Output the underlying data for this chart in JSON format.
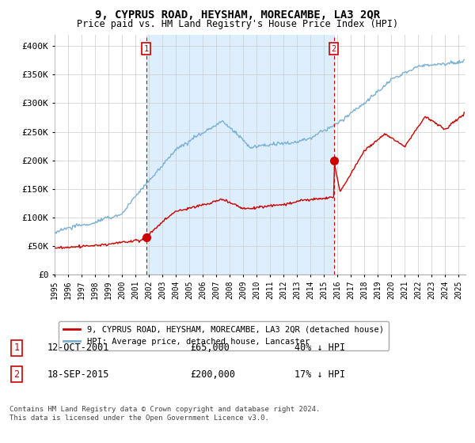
{
  "title": "9, CYPRUS ROAD, HEYSHAM, MORECAMBE, LA3 2QR",
  "subtitle": "Price paid vs. HM Land Registry's House Price Index (HPI)",
  "title_fontsize": 10,
  "subtitle_fontsize": 8.5,
  "xlim_start": 1995.0,
  "xlim_end": 2025.5,
  "ylim_min": 0,
  "ylim_max": 420000,
  "yticks": [
    0,
    50000,
    100000,
    150000,
    200000,
    250000,
    300000,
    350000,
    400000
  ],
  "ytick_labels": [
    "£0",
    "£50K",
    "£100K",
    "£150K",
    "£200K",
    "£250K",
    "£300K",
    "£350K",
    "£400K"
  ],
  "purchase1_x": 2001.79,
  "purchase1_y": 65000,
  "purchase2_x": 2015.72,
  "purchase2_y": 200000,
  "red_line_color": "#cc0000",
  "blue_line_color": "#7ab0d4",
  "shade_color": "#ddeeff",
  "marker_color": "#cc0000",
  "vline_color": "#cc0000",
  "legend_label_red": "9, CYPRUS ROAD, HEYSHAM, MORECAMBE, LA3 2QR (detached house)",
  "legend_label_blue": "HPI: Average price, detached house, Lancaster",
  "purchase1_date": "12-OCT-2001",
  "purchase1_price": "£65,000",
  "purchase1_hpi": "40% ↓ HPI",
  "purchase2_date": "18-SEP-2015",
  "purchase2_price": "£200,000",
  "purchase2_hpi": "17% ↓ HPI",
  "footer1": "Contains HM Land Registry data © Crown copyright and database right 2024.",
  "footer2": "This data is licensed under the Open Government Licence v3.0.",
  "background_color": "#ffffff",
  "grid_color": "#cccccc",
  "xtick_years": [
    1995,
    1996,
    1997,
    1998,
    1999,
    2000,
    2001,
    2002,
    2003,
    2004,
    2005,
    2006,
    2007,
    2008,
    2009,
    2010,
    2011,
    2012,
    2013,
    2014,
    2015,
    2016,
    2017,
    2018,
    2019,
    2020,
    2021,
    2022,
    2023,
    2024,
    2025
  ]
}
